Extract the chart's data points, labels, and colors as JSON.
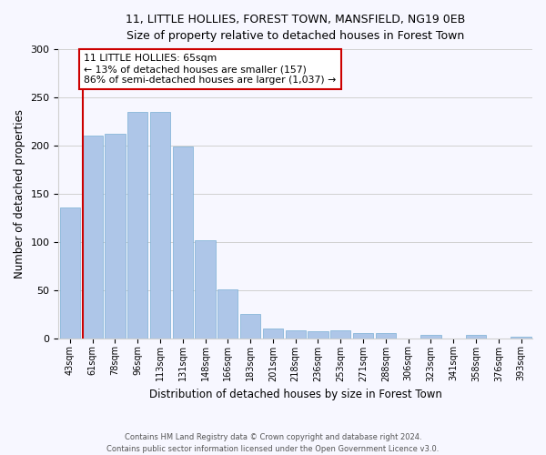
{
  "title_line1": "11, LITTLE HOLLIES, FOREST TOWN, MANSFIELD, NG19 0EB",
  "title_line2": "Size of property relative to detached houses in Forest Town",
  "xlabel": "Distribution of detached houses by size in Forest Town",
  "ylabel": "Number of detached properties",
  "categories": [
    "43sqm",
    "61sqm",
    "78sqm",
    "96sqm",
    "113sqm",
    "131sqm",
    "148sqm",
    "166sqm",
    "183sqm",
    "201sqm",
    "218sqm",
    "236sqm",
    "253sqm",
    "271sqm",
    "288sqm",
    "306sqm",
    "323sqm",
    "341sqm",
    "358sqm",
    "376sqm",
    "393sqm"
  ],
  "values": [
    136,
    210,
    212,
    235,
    235,
    199,
    102,
    51,
    25,
    10,
    8,
    7,
    8,
    5,
    5,
    0,
    3,
    0,
    3,
    0,
    2
  ],
  "bar_color": "#aec6e8",
  "bar_edge_color": "#7aafd4",
  "property_line_x": 0.575,
  "annotation_text_line1": "11 LITTLE HOLLIES: 65sqm",
  "annotation_text_line2": "← 13% of detached houses are smaller (157)",
  "annotation_text_line3": "86% of semi-detached houses are larger (1,037) →",
  "annotation_box_color": "#ffffff",
  "annotation_box_edge": "#cc0000",
  "property_line_color": "#cc0000",
  "ylim": [
    0,
    300
  ],
  "yticks": [
    0,
    50,
    100,
    150,
    200,
    250,
    300
  ],
  "background_color": "#f7f7ff",
  "grid_color": "#d0d0d0",
  "footer_line1": "Contains HM Land Registry data © Crown copyright and database right 2024.",
  "footer_line2": "Contains public sector information licensed under the Open Government Licence v3.0."
}
